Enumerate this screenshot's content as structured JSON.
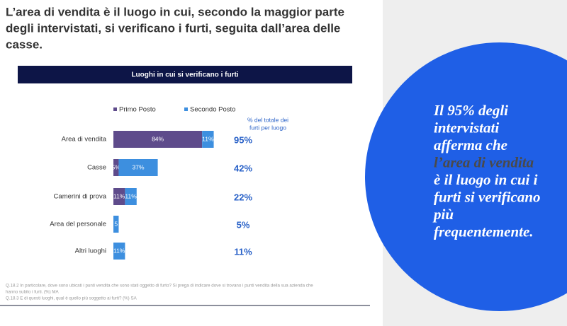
{
  "header": {
    "title_lines": [
      "L’area di vendita è il luogo in cui, secondo la maggior parte",
      "degli intervistati, si verificano i furti, seguita dall’area delle",
      "casse."
    ]
  },
  "chart_data": {
    "type": "stacked-bar-horizontal",
    "title": "Luoghi in cui si verificano i furti",
    "categories": [
      "Area di vendita",
      "Casse",
      "Camerini di prova",
      "Area del personale",
      "Altri luoghi"
    ],
    "series": [
      {
        "name": "Primo Posto",
        "color": "#5e4b8b",
        "values": [
          84,
          5,
          11,
          null,
          null
        ],
        "value_labels": [
          "84%",
          "5%",
          "11%",
          null,
          null
        ]
      },
      {
        "name": "Secondo Posto",
        "color": "#3d8fdf",
        "values": [
          11,
          37,
          11,
          5,
          11
        ],
        "value_labels": [
          "11%",
          "37%",
          "11%",
          "5",
          "11%"
        ]
      }
    ],
    "totals": {
      "title_lines": [
        "% del totale dei",
        "furti per luogo"
      ],
      "values": [
        95,
        42,
        22,
        5,
        11
      ],
      "value_labels": [
        "95%",
        "42%",
        "22%",
        "5%",
        "11%"
      ],
      "color": "#2a62c8"
    }
  },
  "footnotes": [
    "Q.18.2 In particolare, dove sono ubicati i punti vendita che sono stati oggetto di furto? Si prega di indicare dove si trovano i punti vendita della sua azienda che",
    "hanno subito i furti. (%) MA",
    "Q.18.3 E di questi luoghi, qual è quello più soggetto ai furti? (%) SA"
  ],
  "sidebar": {
    "lines": [
      "Il 95% degli",
      "intervistati",
      "afferma che",
      "l’area di vendita",
      "è il luogo in cui i",
      "furti si verificano",
      "più",
      "frequentemente."
    ]
  }
}
